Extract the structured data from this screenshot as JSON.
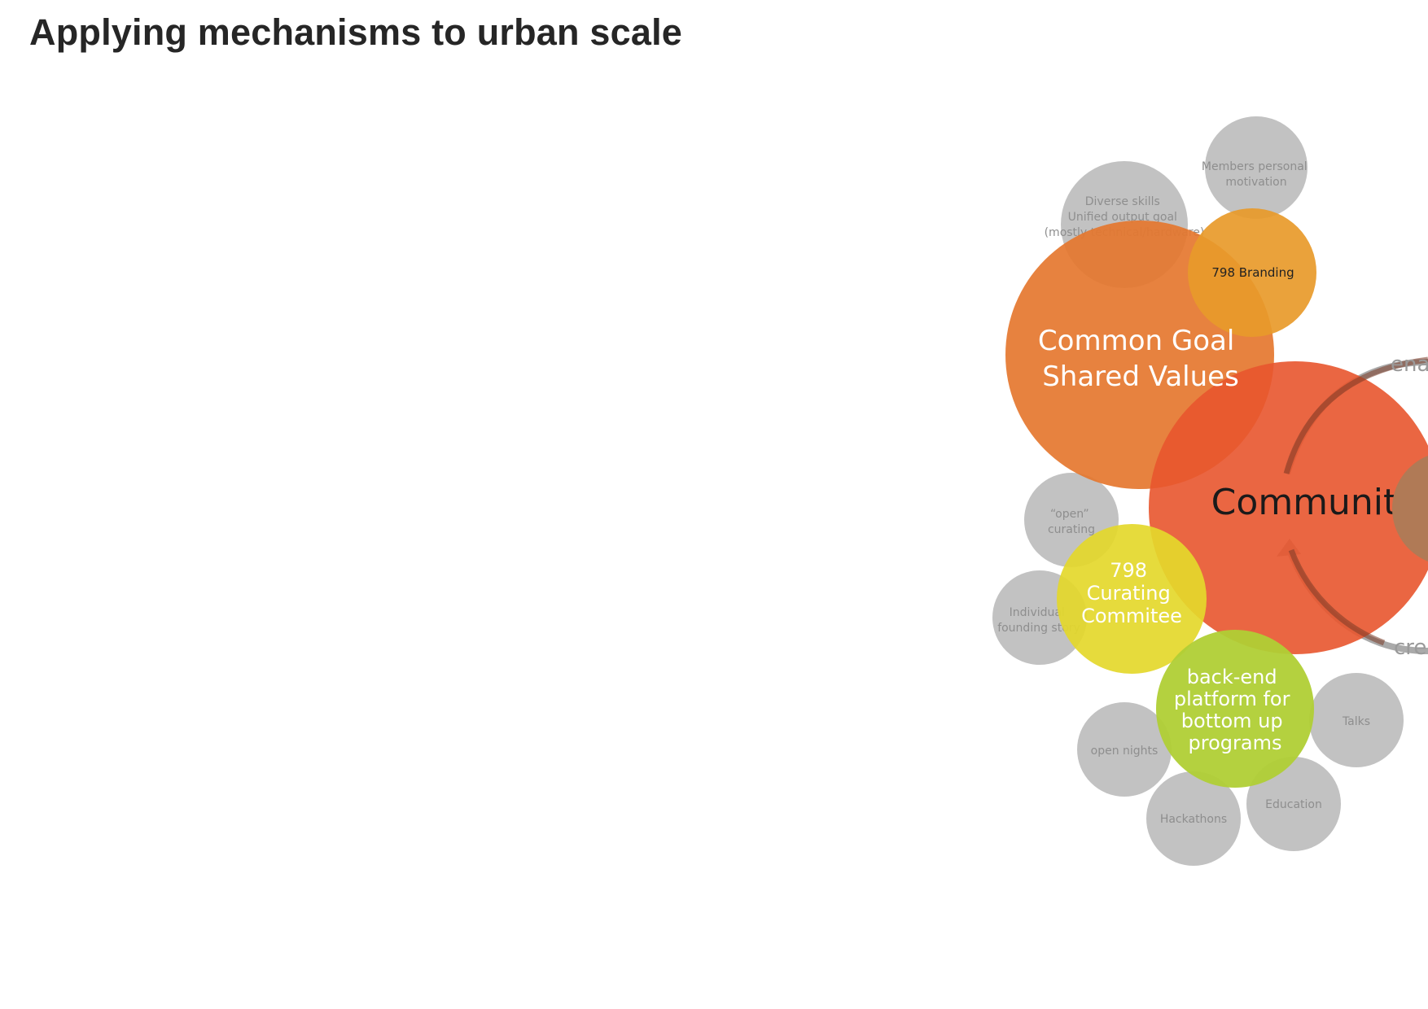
{
  "title": "Applying mechanisms to urban scale",
  "colors": {
    "grey_node": "#c2c2c2",
    "grey_text": "#8e8e8e",
    "common_goal": "#e5772f",
    "branding": "#e89a2a",
    "community": "#e8552e",
    "curating": "#e4d82b",
    "backend": "#b0cf35",
    "cycle_arrow": "#aaaaaa"
  },
  "diagram": {
    "nodes": {
      "members_motivation": [
        "Members personal",
        "motivation"
      ],
      "diverse_skills": [
        "Diverse skills",
        "Unified output goal",
        "(mostly technical/hardware)"
      ],
      "open_curating": [
        "“open”",
        "curating"
      ],
      "individual_story": [
        "Individual",
        "founding story"
      ],
      "open_nights": [
        "open nights"
      ],
      "hackathons": [
        "Hackathons"
      ],
      "education": [
        "Education"
      ],
      "talks": [
        "Talks"
      ],
      "branding": [
        "798 Branding"
      ],
      "common_goal": [
        "Common Goal",
        "Shared Values"
      ],
      "community": [
        "Community"
      ],
      "curating": [
        "798",
        "Curating",
        "Commitee"
      ],
      "backend": [
        "back-end",
        "platform for",
        "bottom up",
        "programs"
      ]
    },
    "cycle_labels": {
      "top": "ena",
      "bottom": "crea"
    }
  }
}
